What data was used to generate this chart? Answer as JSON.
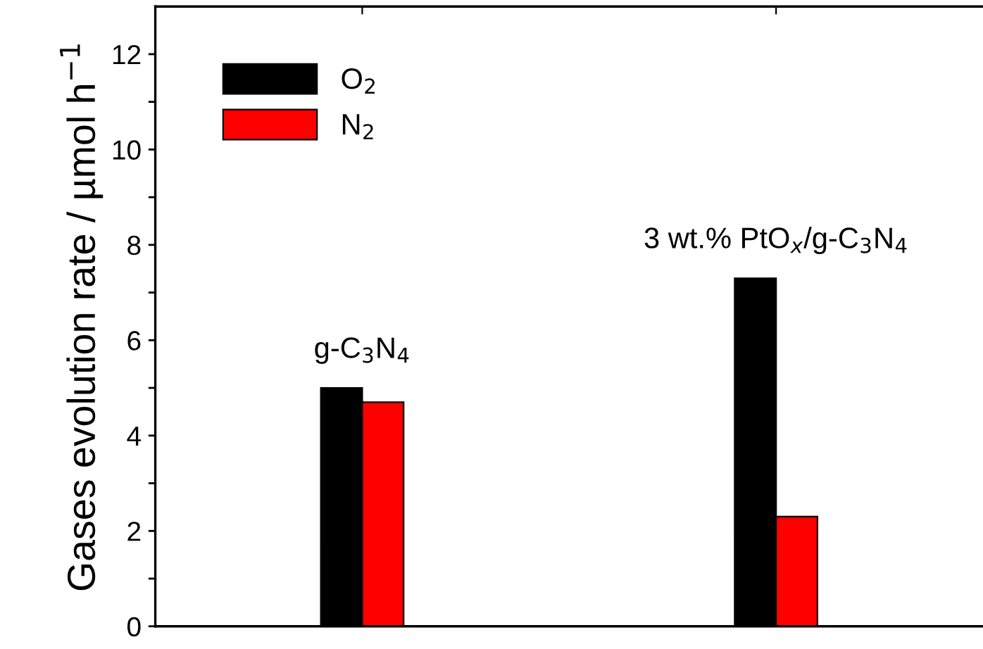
{
  "chart_data": {
    "type": "bar",
    "categories": [
      null,
      null
    ],
    "series": [
      {
        "name": "O$_{2}$",
        "color": "#000000",
        "values": [
          5.0,
          7.3
        ]
      },
      {
        "name": "N$_{2}$",
        "color": "#ff0000",
        "values": [
          4.7,
          2.3
        ]
      }
    ],
    "ylabel": "Gases evolution rate / µmol h$^{−1}$",
    "annotations": [
      "g-C$_{3}$N$_{4}$",
      "3 wt.% PtO$_{x}$/g-C$_{3}$N$_{4}$"
    ],
    "ylim": [
      0,
      13
    ],
    "yticks": [
      0,
      {
        "value": 1,
        "label": null
      },
      2,
      {
        "value": 3,
        "label": null
      },
      4,
      {
        "value": 5,
        "label": null
      },
      6,
      {
        "value": 7,
        "label": null
      },
      8,
      {
        "value": 9,
        "label": null
      },
      10,
      {
        "value": 11,
        "label": null
      },
      12
    ],
    "tick_labels": "y",
    "grid": false,
    "legend": "top left"
  }
}
